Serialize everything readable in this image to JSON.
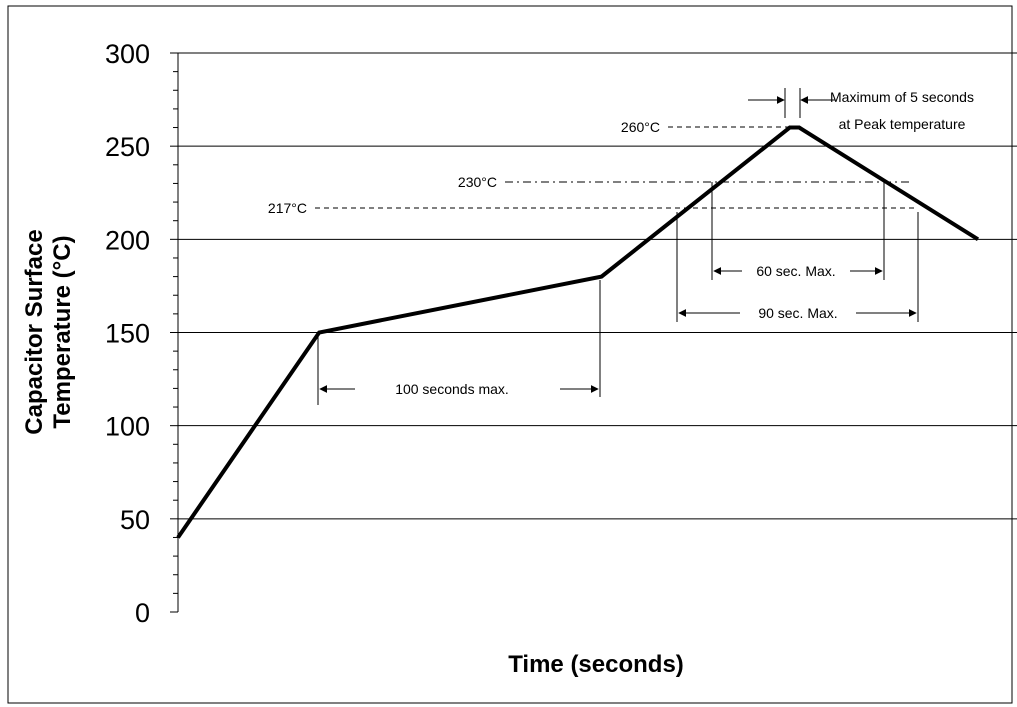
{
  "chart_data": {
    "type": "line",
    "title": "",
    "xlabel": "Time (seconds)",
    "ylabel_lines": [
      "Capacitor Surface",
      "Temperature (°C)"
    ],
    "ylim": [
      0,
      300
    ],
    "yticks": [
      "0",
      "50",
      "100",
      "150",
      "200",
      "250",
      "300"
    ],
    "ytick_values": [
      0,
      50,
      100,
      150,
      200,
      250,
      300
    ],
    "grid": true,
    "series": [
      {
        "x": [
          0,
          75,
          225,
          325,
          330,
          425
        ],
        "y": [
          40,
          150,
          180,
          260,
          260,
          200
        ]
      }
    ],
    "annotations": {
      "peak_label": "260°C",
      "level_230_label": "230°C",
      "level_217_label": "217°C",
      "peak_note_line1": "Maximum of 5 seconds",
      "peak_note_line2": "at Peak temperature",
      "preheat_label": "100 seconds max.",
      "above_230_label": "60 sec. Max.",
      "above_217_label": "90 sec. Max."
    }
  }
}
